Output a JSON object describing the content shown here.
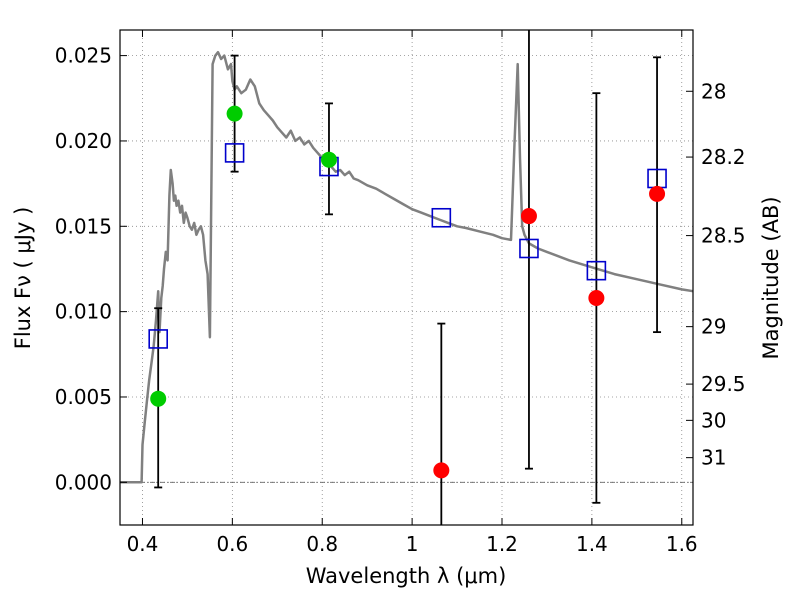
{
  "chart_data": {
    "type": "scatter",
    "xlabel": "Wavelength  λ (μm)",
    "ylabel": "Flux  Fν  ( μJy )",
    "y2label": "Magnitude (AB)",
    "xlim": [
      0.35,
      1.625
    ],
    "ylim": [
      -0.0025,
      0.0265
    ],
    "xticks": [
      0.4,
      0.6,
      0.8,
      1.0,
      1.2,
      1.4,
      1.6
    ],
    "xtick_labels": [
      "0.4",
      "0.6",
      "0.8",
      "1",
      "1.2",
      "1.4",
      "1.6"
    ],
    "yticks": [
      0.0,
      0.005,
      0.01,
      0.015,
      0.02,
      0.025
    ],
    "ytick_labels": [
      "0.000",
      "0.005",
      "0.010",
      "0.015",
      "0.020",
      "0.025"
    ],
    "mag_ticks": [
      28,
      28.2,
      28.5,
      29,
      29.5,
      30,
      31
    ],
    "mag_tick_labels": [
      "28",
      "28.2",
      "28.5",
      "29",
      "29.5",
      "30",
      "31"
    ],
    "grid": true,
    "zero_line": true,
    "colors": {
      "sed": "#808080",
      "observed_optical": "#00cc00",
      "observed_nir": "#ff0000",
      "model": "#0000cc",
      "errorbar": "#000000"
    },
    "sed_model": {
      "x": [
        0.35,
        0.398,
        0.4,
        0.405,
        0.41,
        0.415,
        0.42,
        0.425,
        0.43,
        0.435,
        0.438,
        0.442,
        0.445,
        0.448,
        0.452,
        0.456,
        0.46,
        0.463,
        0.467,
        0.47,
        0.473,
        0.476,
        0.48,
        0.484,
        0.488,
        0.492,
        0.496,
        0.5,
        0.505,
        0.51,
        0.515,
        0.52,
        0.525,
        0.53,
        0.535,
        0.54,
        0.545,
        0.55,
        0.556,
        0.562,
        0.568,
        0.575,
        0.582,
        0.59,
        0.597,
        0.6,
        0.605,
        0.61,
        0.62,
        0.63,
        0.64,
        0.65,
        0.66,
        0.67,
        0.68,
        0.69,
        0.7,
        0.71,
        0.72,
        0.73,
        0.74,
        0.75,
        0.76,
        0.77,
        0.78,
        0.79,
        0.8,
        0.81,
        0.82,
        0.83,
        0.84,
        0.85,
        0.86,
        0.87,
        0.88,
        0.9,
        0.92,
        0.94,
        0.96,
        0.98,
        1.0,
        1.02,
        1.04,
        1.06,
        1.08,
        1.1,
        1.12,
        1.15,
        1.18,
        1.2,
        1.22,
        1.228,
        1.235,
        1.24,
        1.245,
        1.25,
        1.26,
        1.28,
        1.3,
        1.35,
        1.4,
        1.45,
        1.5,
        1.55,
        1.6,
        1.625
      ],
      "y": [
        0.0,
        0.0,
        0.0022,
        0.0035,
        0.0048,
        0.006,
        0.007,
        0.008,
        0.0095,
        0.0112,
        0.0088,
        0.0108,
        0.0115,
        0.0125,
        0.0135,
        0.013,
        0.0168,
        0.0183,
        0.0175,
        0.0165,
        0.0168,
        0.0162,
        0.0165,
        0.0158,
        0.0162,
        0.0152,
        0.0158,
        0.0155,
        0.015,
        0.0148,
        0.0152,
        0.0145,
        0.0148,
        0.015,
        0.0145,
        0.013,
        0.0122,
        0.0085,
        0.0245,
        0.025,
        0.0252,
        0.0248,
        0.025,
        0.0242,
        0.0245,
        0.0235,
        0.023,
        0.0232,
        0.0228,
        0.023,
        0.0236,
        0.0232,
        0.0222,
        0.0218,
        0.0215,
        0.0212,
        0.0208,
        0.0205,
        0.0202,
        0.0206,
        0.02,
        0.0202,
        0.0198,
        0.02,
        0.0196,
        0.0193,
        0.019,
        0.0188,
        0.0185,
        0.0182,
        0.0183,
        0.018,
        0.0182,
        0.0178,
        0.0177,
        0.0174,
        0.0172,
        0.0169,
        0.0166,
        0.0163,
        0.016,
        0.0158,
        0.0156,
        0.0154,
        0.0152,
        0.015,
        0.0149,
        0.0147,
        0.0145,
        0.0143,
        0.0142,
        0.02,
        0.0245,
        0.019,
        0.015,
        0.0145,
        0.014,
        0.0137,
        0.0135,
        0.013,
        0.0126,
        0.0122,
        0.0119,
        0.0116,
        0.0113,
        0.0112
      ]
    },
    "observed_optical": {
      "x": [
        0.435,
        0.605,
        0.815
      ],
      "y": [
        0.0049,
        0.0216,
        0.0189
      ],
      "yerr_low": [
        -0.0003,
        0.0182,
        0.0157
      ],
      "yerr_high": [
        0.0102,
        0.025,
        0.0222
      ]
    },
    "observed_nir": {
      "x": [
        1.065,
        1.26,
        1.41,
        1.545
      ],
      "y": [
        0.0007,
        0.0156,
        0.0108,
        0.0169
      ],
      "yerr_low": [
        -0.0025,
        0.0008,
        -0.0012,
        0.0088
      ],
      "yerr_high": [
        0.0093,
        0.0265,
        0.0228,
        0.0249
      ]
    },
    "model_photometry": {
      "x": [
        0.435,
        0.605,
        0.815,
        1.065,
        1.26,
        1.41,
        1.545
      ],
      "y": [
        0.0084,
        0.0193,
        0.0185,
        0.0155,
        0.0137,
        0.0124,
        0.0178
      ]
    }
  }
}
